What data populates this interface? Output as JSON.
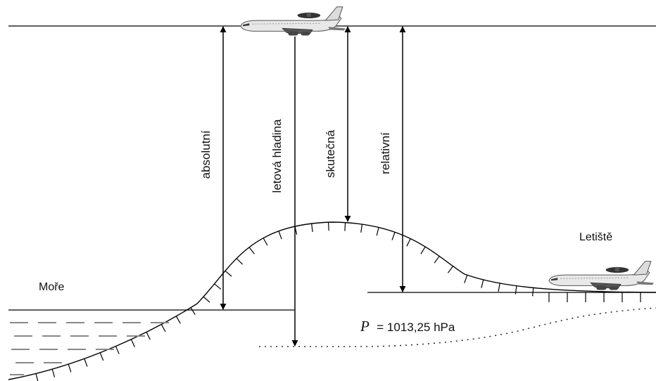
{
  "labels": {
    "absolute": "absolutní",
    "flight_level": "letová hladina",
    "true_altitude": "skutečná",
    "relative": "relativní",
    "sea": "Moře",
    "airport": "Letiště",
    "pressure_symbol": "P",
    "pressure_value": "= 1013,25 hPa"
  },
  "colors": {
    "line": "#000000",
    "water_dash": "#888888",
    "background": "#ffffff"
  },
  "icons": {
    "aircraft_top": "airplane-icon",
    "aircraft_airport": "airplane-icon"
  }
}
